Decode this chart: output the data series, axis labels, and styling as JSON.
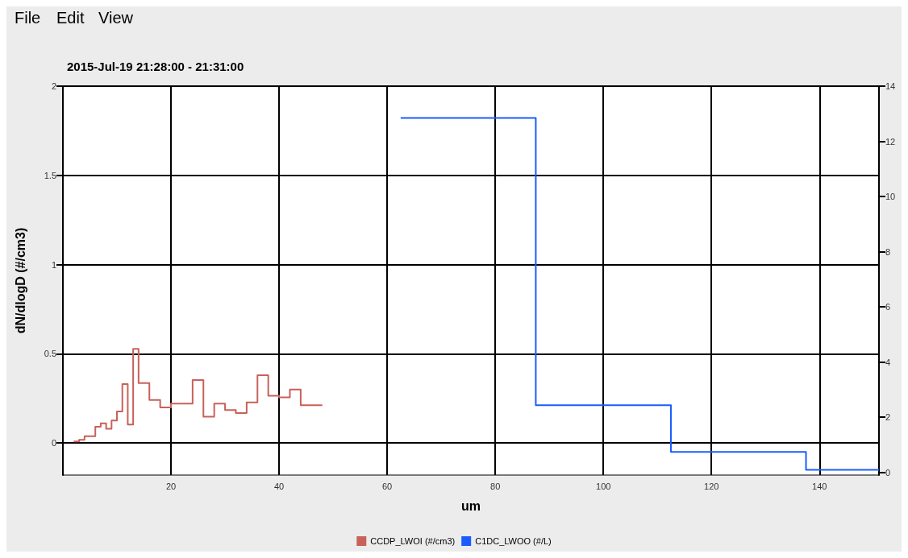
{
  "chart_data": {
    "type": "step",
    "title": "2015-Jul-19 21:28:00 - 21:31:00",
    "xlabel": "um",
    "ylabel": "dN/dlogD (#/cm3)",
    "annotations": [
      "File",
      "Edit",
      "View"
    ],
    "xlim": [
      0,
      151
    ],
    "xticks": [
      20,
      40,
      60,
      80,
      100,
      120,
      140
    ],
    "ylim": [
      -0.18,
      2
    ],
    "yticks": [
      0,
      0.5,
      1,
      1.5,
      2
    ],
    "y2lim": [
      -0.1,
      14
    ],
    "y2ticks": [
      0,
      2,
      4,
      6,
      8,
      10,
      12,
      14
    ],
    "grid": true,
    "legend": "bottom",
    "series": [
      {
        "name": "CCDP_LWOI (#/cm3)",
        "color": "#c8615a",
        "x": [
          2,
          3,
          4,
          6,
          7,
          8,
          9,
          10,
          11,
          12,
          13,
          14,
          16,
          18,
          20,
          24,
          26,
          28,
          30,
          32,
          34,
          36,
          38,
          40,
          42,
          44,
          48
        ],
        "values": [
          0.008,
          0.018,
          0.038,
          0.091,
          0.11,
          0.08,
          0.126,
          0.177,
          0.33,
          0.103,
          0.527,
          0.336,
          0.241,
          0.199,
          0.221,
          0.353,
          0.147,
          0.221,
          0.185,
          0.168,
          0.227,
          0.38,
          0.265,
          0.256,
          0.3,
          0.212,
          0.212
        ]
      },
      {
        "name": "C1DC_LWOO (#/L)",
        "color": "#1a5cff",
        "axis": "y2",
        "x": [
          62.5,
          87.5,
          112.5,
          137.5,
          151
        ],
        "values": [
          12.85,
          2.43,
          0.74,
          0.09,
          0.09
        ]
      }
    ]
  }
}
